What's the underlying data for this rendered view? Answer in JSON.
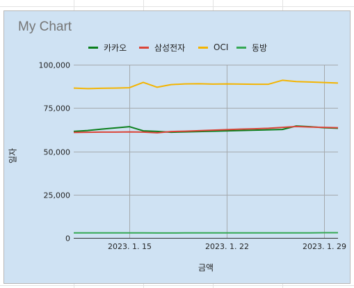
{
  "title": "My Chart",
  "colors": {
    "background": "#cfe2f3",
    "grid": "#a4a9ad",
    "series": [
      "#0a7f1c",
      "#db4437",
      "#f4b400",
      "#34a853"
    ]
  },
  "chart_data": {
    "type": "line",
    "title": "My Chart",
    "xlabel": "금액",
    "ylabel": "일자",
    "x": [
      "2023-01-11",
      "2023-01-12",
      "2023-01-13",
      "2023-01-14",
      "2023-01-15",
      "2023-01-16",
      "2023-01-17",
      "2023-01-18",
      "2023-01-19",
      "2023-01-20",
      "2023-01-21",
      "2023-01-22",
      "2023-01-23",
      "2023-01-24",
      "2023-01-25",
      "2023-01-26",
      "2023-01-27",
      "2023-01-28",
      "2023-01-29",
      "2023-01-30"
    ],
    "x_ticks": [
      "2023. 1. 15",
      "2023. 1. 22",
      "2023. 1. 29"
    ],
    "y_ticks": [
      "0",
      "25,000",
      "50,000",
      "75,000",
      "100,000"
    ],
    "ylim": [
      0,
      100000
    ],
    "grid": true,
    "legend_position": "top",
    "series": [
      {
        "name": "카카오",
        "color": "#0a7f1c",
        "values": [
          61500,
          62000,
          62800,
          63500,
          64200,
          61800,
          61500,
          61000,
          61200,
          61400,
          61600,
          61800,
          62000,
          62200,
          62400,
          62600,
          64600,
          64200,
          63600,
          63300
        ]
      },
      {
        "name": "삼성전자",
        "color": "#db4437",
        "values": [
          60900,
          61000,
          61100,
          61100,
          61200,
          61100,
          60700,
          61400,
          61600,
          61900,
          62200,
          62500,
          62800,
          63000,
          63300,
          63800,
          64300,
          64000,
          63800,
          63600
        ]
      },
      {
        "name": "OCI",
        "color": "#f4b400",
        "values": [
          86500,
          86200,
          86400,
          86500,
          86700,
          89800,
          87000,
          88500,
          88900,
          89000,
          88800,
          88900,
          88800,
          88700,
          88700,
          91000,
          90300,
          90000,
          89700,
          89400
        ]
      },
      {
        "name": "동방",
        "color": "#34a853",
        "values": [
          2900,
          2900,
          2900,
          2900,
          2900,
          2900,
          2850,
          2850,
          2900,
          2900,
          2900,
          2900,
          2900,
          2900,
          2900,
          2900,
          2900,
          2900,
          3000,
          3000
        ]
      }
    ]
  }
}
